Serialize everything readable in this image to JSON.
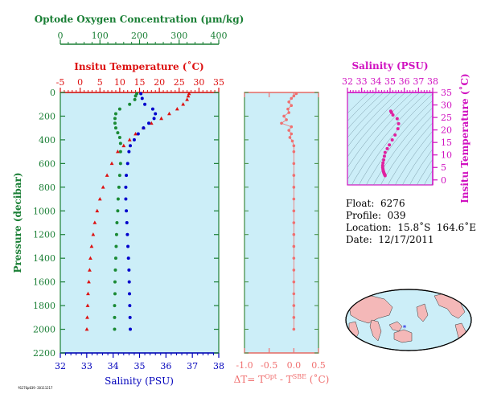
{
  "colors": {
    "oxygen": "#1a8a35",
    "temperature": "#dd1111",
    "salinity": "#0000cc",
    "ts": "#e020a0",
    "delta": "#f07070",
    "panel_bg": "#cceef8",
    "map_land": "#f4b8b8",
    "map_ocean": "#cceef8"
  },
  "main_panel": {
    "oxygen_axis_label": "Optode Oxygen Concentration (μm/kg)",
    "oxygen_ticks": [
      "0",
      "100",
      "200",
      "300",
      "400"
    ],
    "temp_axis_label": "Insitu Temperature (˚C)",
    "temp_ticks": [
      "-5",
      "0",
      "5",
      "10",
      "15",
      "20",
      "25",
      "30",
      "35"
    ],
    "pressure_axis_label": "Pressure (decibar)",
    "pressure_ticks": [
      "0",
      "200",
      "400",
      "600",
      "800",
      "1000",
      "1200",
      "1400",
      "1600",
      "1800",
      "2000",
      "2200"
    ],
    "salinity_axis_label": "Salinity (PSU)",
    "salinity_ticks": [
      "32",
      "33",
      "34",
      "35",
      "36",
      "37",
      "38"
    ]
  },
  "delta_panel": {
    "xlabel": "ΔT= T",
    "xlabel_sup1": "Opt",
    "xlabel_mid": " - T",
    "xlabel_sup2": "SBE",
    "xlabel_end": " (˚C)",
    "ticks": [
      "-1.0",
      "-0.5",
      "0.0",
      "0.5"
    ]
  },
  "ts_panel": {
    "top_label": "Salinity (PSU)",
    "top_ticks": [
      "32",
      "33",
      "34",
      "35",
      "36",
      "37",
      "38"
    ],
    "right_label": "Insitu Temperature (˚C)",
    "right_ticks": [
      "0",
      "5",
      "10",
      "15",
      "20",
      "25",
      "30",
      "35"
    ]
  },
  "info": {
    "float_line": "Float:  6276",
    "profile_line": "Profile:  039",
    "location_line": "Location:  15.8˚S  164.6˚E",
    "date_line": "Date:  12/17/2011"
  },
  "footer_code": "f6276p039-20111217",
  "chart_data": [
    {
      "type": "scatter",
      "title": "",
      "ylabel": "Pressure (decibar)",
      "ylim": [
        2200,
        0
      ],
      "grid": false,
      "series": [
        {
          "name": "Optode Oxygen Concentration (μm/kg)",
          "x_axis": "oxygen",
          "xlim": [
            0,
            400
          ],
          "points": [
            [
              193,
              10
            ],
            [
              190,
              30
            ],
            [
              188,
              60
            ],
            [
              175,
              100
            ],
            [
              150,
              140
            ],
            [
              140,
              180
            ],
            [
              138,
              220
            ],
            [
              138,
              260
            ],
            [
              140,
              300
            ],
            [
              145,
              340
            ],
            [
              150,
              380
            ],
            [
              152,
              430
            ],
            [
              152,
              500
            ],
            [
              152,
              600
            ],
            [
              150,
              700
            ],
            [
              148,
              800
            ],
            [
              146,
              900
            ],
            [
              145,
              1000
            ],
            [
              143,
              1100
            ],
            [
              142,
              1200
            ],
            [
              141,
              1300
            ],
            [
              140,
              1400
            ],
            [
              139,
              1500
            ],
            [
              138,
              1600
            ],
            [
              138,
              1700
            ],
            [
              137,
              1800
            ],
            [
              137,
              1900
            ],
            [
              137,
              2000
            ]
          ]
        },
        {
          "name": "Insitu Temperature (˚C)",
          "x_axis": "temperature",
          "xlim": [
            -5,
            35
          ],
          "points": [
            [
              27.5,
              10
            ],
            [
              27.3,
              30
            ],
            [
              27,
              60
            ],
            [
              26,
              100
            ],
            [
              24.5,
              140
            ],
            [
              22.5,
              180
            ],
            [
              20.5,
              220
            ],
            [
              18,
              260
            ],
            [
              16,
              300
            ],
            [
              14,
              350
            ],
            [
              12.5,
              400
            ],
            [
              11,
              450
            ],
            [
              9.5,
              500
            ],
            [
              8,
              600
            ],
            [
              6.8,
              700
            ],
            [
              5.8,
              800
            ],
            [
              5,
              900
            ],
            [
              4.3,
              1000
            ],
            [
              3.7,
              1100
            ],
            [
              3.3,
              1200
            ],
            [
              2.9,
              1300
            ],
            [
              2.6,
              1400
            ],
            [
              2.4,
              1500
            ],
            [
              2.2,
              1600
            ],
            [
              2,
              1700
            ],
            [
              1.9,
              1800
            ],
            [
              1.8,
              1900
            ],
            [
              1.7,
              2000
            ]
          ]
        },
        {
          "name": "Salinity (PSU)",
          "x_axis": "salinity",
          "xlim": [
            32,
            38
          ],
          "points": [
            [
              35.05,
              10
            ],
            [
              35.1,
              50
            ],
            [
              35.2,
              100
            ],
            [
              35.5,
              140
            ],
            [
              35.6,
              180
            ],
            [
              35.55,
              220
            ],
            [
              35.35,
              260
            ],
            [
              35.15,
              300
            ],
            [
              34.95,
              350
            ],
            [
              34.8,
              400
            ],
            [
              34.65,
              450
            ],
            [
              34.6,
              500
            ],
            [
              34.55,
              600
            ],
            [
              34.5,
              700
            ],
            [
              34.48,
              800
            ],
            [
              34.48,
              900
            ],
            [
              34.5,
              1000
            ],
            [
              34.52,
              1100
            ],
            [
              34.54,
              1200
            ],
            [
              34.56,
              1300
            ],
            [
              34.58,
              1400
            ],
            [
              34.6,
              1500
            ],
            [
              34.61,
              1600
            ],
            [
              34.62,
              1700
            ],
            [
              34.63,
              1800
            ],
            [
              34.64,
              1900
            ],
            [
              34.65,
              2000
            ]
          ]
        }
      ]
    },
    {
      "type": "scatter",
      "xlabel": "ΔT= Tᴼᵖᵗ - Tˢᴮᴱ (˚C)",
      "xlim": [
        -1.0,
        0.5
      ],
      "ylim": [
        2200,
        0
      ],
      "points": [
        [
          0.05,
          10
        ],
        [
          0,
          30
        ],
        [
          -0.05,
          50
        ],
        [
          -0.1,
          80
        ],
        [
          -0.05,
          110
        ],
        [
          -0.12,
          140
        ],
        [
          -0.1,
          170
        ],
        [
          -0.2,
          200
        ],
        [
          -0.15,
          230
        ],
        [
          -0.25,
          260
        ],
        [
          -0.05,
          290
        ],
        [
          -0.1,
          320
        ],
        [
          -0.05,
          350
        ],
        [
          -0.08,
          380
        ],
        [
          -0.03,
          410
        ],
        [
          0,
          450
        ],
        [
          0,
          500
        ],
        [
          0,
          600
        ],
        [
          0,
          700
        ],
        [
          0,
          800
        ],
        [
          0,
          900
        ],
        [
          0,
          1000
        ],
        [
          0,
          1100
        ],
        [
          0,
          1200
        ],
        [
          0,
          1300
        ],
        [
          0,
          1400
        ],
        [
          0,
          1500
        ],
        [
          0,
          1600
        ],
        [
          0,
          1700
        ],
        [
          0,
          1800
        ],
        [
          0,
          1900
        ],
        [
          0,
          2000
        ]
      ]
    },
    {
      "type": "scatter",
      "xlabel": "Salinity (PSU)",
      "ylabel": "Insitu Temperature (˚C)",
      "xlim": [
        32,
        38
      ],
      "ylim": [
        -2,
        35
      ],
      "points": [
        [
          35.05,
          27.5
        ],
        [
          35.1,
          27
        ],
        [
          35.2,
          26
        ],
        [
          35.5,
          24.5
        ],
        [
          35.6,
          22.5
        ],
        [
          35.55,
          20.5
        ],
        [
          35.35,
          18
        ],
        [
          35.15,
          16
        ],
        [
          34.95,
          14
        ],
        [
          34.8,
          12.5
        ],
        [
          34.65,
          11
        ],
        [
          34.6,
          9.5
        ],
        [
          34.55,
          8
        ],
        [
          34.5,
          6.8
        ],
        [
          34.48,
          5.8
        ],
        [
          34.48,
          5
        ],
        [
          34.5,
          4.3
        ],
        [
          34.52,
          3.7
        ],
        [
          34.54,
          3.3
        ],
        [
          34.56,
          2.9
        ],
        [
          34.58,
          2.6
        ],
        [
          34.6,
          2.4
        ],
        [
          34.62,
          2.2
        ],
        [
          34.63,
          2
        ],
        [
          34.64,
          1.9
        ],
        [
          34.65,
          1.7
        ]
      ]
    }
  ]
}
